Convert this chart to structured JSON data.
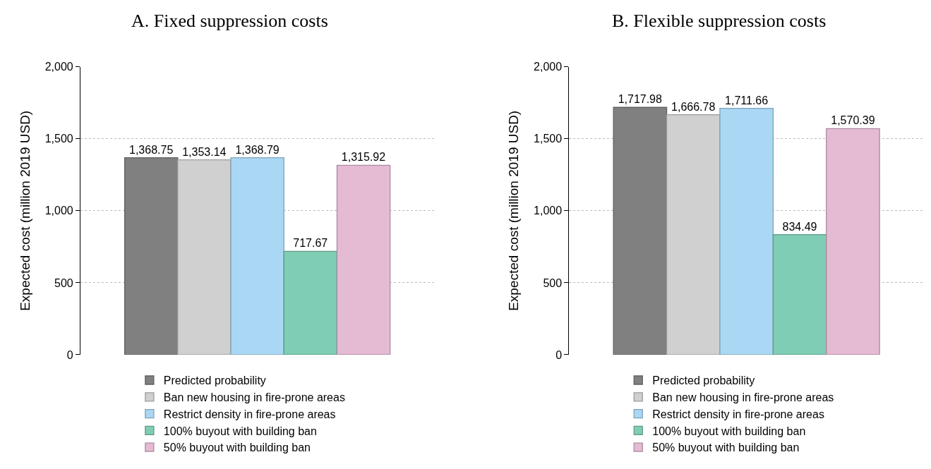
{
  "chart_data": [
    {
      "type": "bar",
      "title": "A. Fixed suppression costs",
      "ylabel": "Expected cost (million 2019 USD)",
      "categories": [
        null
      ],
      "ylim": [
        0,
        2000
      ],
      "yticks": [
        0,
        500,
        {
          "value": 1000,
          "label": "1,000"
        },
        {
          "value": 1500,
          "label": "1,500"
        },
        {
          "value": 2000,
          "label": "2,000"
        }
      ],
      "grid": "y",
      "legend": "bottom",
      "series": [
        {
          "name": "Predicted probability",
          "color": "#808080",
          "values": [
            1368.75
          ],
          "value_labels": [
            "1,368.75"
          ]
        },
        {
          "name": "Ban new housing in fire-prone areas",
          "color": "#d0d0d0",
          "values": [
            1353.14
          ],
          "value_labels": [
            "1,353.14"
          ]
        },
        {
          "name": "Restrict density in fire-prone areas",
          "color": "#aad8f4",
          "values": [
            1368.79
          ],
          "value_labels": [
            "1,368.79"
          ]
        },
        {
          "name": "100% buyout with building ban",
          "color": "#7fcdb4",
          "values": [
            717.67
          ],
          "value_labels": [
            "717.67"
          ]
        },
        {
          "name": "50% buyout with building ban",
          "color": "#e5bad3",
          "values": [
            1315.92
          ],
          "value_labels": [
            "1,315.92"
          ]
        }
      ]
    },
    {
      "type": "bar",
      "title": "B. Flexible suppression costs",
      "ylabel": "Expected cost (million 2019 USD)",
      "categories": [
        null
      ],
      "ylim": [
        0,
        2000
      ],
      "yticks": [
        0,
        500,
        {
          "value": 1000,
          "label": "1,000"
        },
        {
          "value": 1500,
          "label": "1,500"
        },
        {
          "value": 2000,
          "label": "2,000"
        }
      ],
      "grid": "y",
      "legend": "bottom",
      "series": [
        {
          "name": "Predicted probability",
          "color": "#808080",
          "values": [
            1717.98
          ],
          "value_labels": [
            "1,717.98"
          ]
        },
        {
          "name": "Ban new housing in fire-prone areas",
          "color": "#d0d0d0",
          "values": [
            1666.78
          ],
          "value_labels": [
            "1,666.78"
          ]
        },
        {
          "name": "Restrict density in fire-prone areas",
          "color": "#aad8f4",
          "values": [
            1711.66
          ],
          "value_labels": [
            "1,711.66"
          ]
        },
        {
          "name": "100% buyout with building ban",
          "color": "#7fcdb4",
          "values": [
            834.49
          ],
          "value_labels": [
            "834.49"
          ]
        },
        {
          "name": "50% buyout with building ban",
          "color": "#e5bad3",
          "values": [
            1570.39
          ],
          "value_labels": [
            "1,570.39"
          ]
        }
      ]
    }
  ]
}
